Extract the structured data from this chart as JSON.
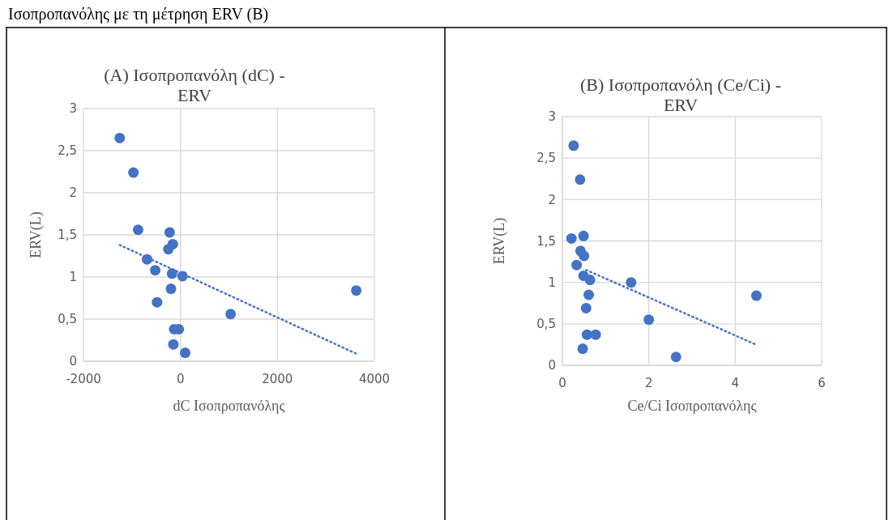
{
  "chart_data": [
    {
      "type": "scatter",
      "title": "(A) Ισοπροπανόλη (dC) - ERV",
      "xlabel": "dC Ισοπροπανόλης",
      "ylabel": "ERV(L)",
      "annotations": [
        "Ισοπροπανόλης με τη μέτρηση ERV (B)"
      ],
      "xlim": [
        -2000,
        4000
      ],
      "xticks": [
        -2000,
        0,
        2000,
        4000
      ],
      "ylim": [
        0,
        3
      ],
      "yticks": [
        0,
        {
          "value": 0.5,
          "label": "0,5"
        },
        1,
        {
          "value": 1.5,
          "label": "1,5"
        },
        2,
        {
          "value": 2.5,
          "label": "2,5"
        },
        3
      ],
      "grid": true,
      "series": [
        {
          "marker": "circle",
          "color": "#4472c4",
          "x": [
            -1252,
            -970,
            -873,
            -222,
            -157,
            -249,
            -688,
            -520,
            -173,
            43,
            -195,
            -482,
            1035,
            3626,
            -130,
            -33,
            -146,
            98
          ],
          "values": [
            2.65,
            2.24,
            1.56,
            1.53,
            1.39,
            1.33,
            1.21,
            1.08,
            1.04,
            1.01,
            0.86,
            0.7,
            0.56,
            0.84,
            0.38,
            0.38,
            0.2,
            0.1
          ]
        },
        {
          "type": "line",
          "marker": "none",
          "line_style": "dotted",
          "color": "#4472c4",
          "x": [
            -1252,
            3626
          ],
          "values": [
            1.38,
            0.09
          ]
        }
      ]
    },
    {
      "type": "scatter",
      "title": "(B) Ισοπροπανόλη (Ce/Ci) - ERV",
      "xlabel": "Ce/Ci Ισοπροπανόλης",
      "ylabel": "ERV(L)",
      "xlim": [
        0,
        6
      ],
      "xticks": [
        0,
        2,
        4,
        6
      ],
      "ylim": [
        0,
        3
      ],
      "yticks": [
        0,
        {
          "value": 0.5,
          "label": "0,5"
        },
        1,
        {
          "value": 1.5,
          "label": "1,5"
        },
        2,
        {
          "value": 2.5,
          "label": "2,5"
        },
        3
      ],
      "grid": true,
      "series": [
        {
          "marker": "circle",
          "color": "#4472c4",
          "x": [
            0.26,
            0.41,
            0.21,
            0.49,
            0.42,
            0.5,
            0.33,
            0.49,
            0.64,
            1.59,
            0.61,
            0.55,
            2.0,
            4.49,
            0.57,
            0.77,
            0.47,
            2.63
          ],
          "values": [
            2.65,
            2.24,
            1.53,
            1.56,
            1.38,
            1.32,
            1.21,
            1.08,
            1.03,
            1.0,
            0.85,
            0.69,
            0.55,
            0.84,
            0.37,
            0.37,
            0.2,
            0.1
          ]
        },
        {
          "type": "line",
          "marker": "none",
          "line_style": "dotted",
          "color": "#4472c4",
          "x": [
            0.55,
            4.48
          ],
          "values": [
            1.15,
            0.25
          ]
        }
      ]
    }
  ]
}
